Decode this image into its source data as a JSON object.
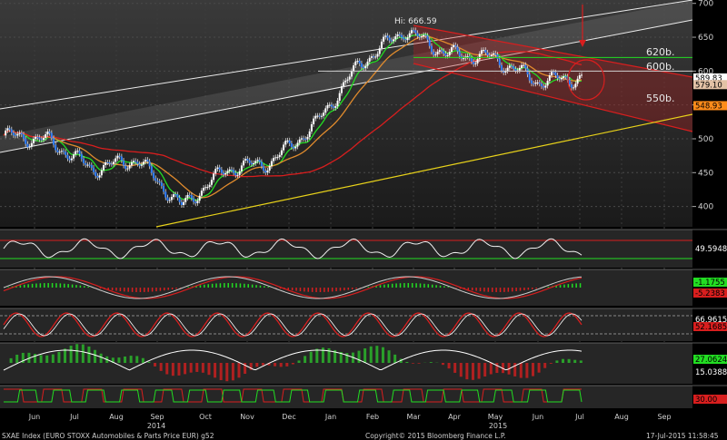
{
  "chart_data": {
    "type": "line",
    "title": "",
    "footer": {
      "left": "SXAE Index (EURO STOXX Automobiles & Parts Price EUR) g52",
      "center": "Copyright© 2015 Bloomberg Finance L.P.",
      "right": "17-Jul-2015 11:58:45"
    },
    "x_labels": [
      "Jun",
      "Jul",
      "Aug",
      "Sep",
      "Oct",
      "Nov",
      "Dec",
      "Jan",
      "Feb",
      "Mar",
      "Apr",
      "May",
      "Jun",
      "Jul",
      "Aug",
      "Sep"
    ],
    "year_labels": [
      "2014",
      "2015"
    ],
    "ylim": [
      370,
      705
    ],
    "y_ticks": [
      400,
      450,
      500,
      550,
      600,
      650,
      700
    ],
    "annotations": {
      "high": "Hi: 666.59",
      "level_620": "620b.",
      "level_600": "600b.",
      "level_550": "550b."
    },
    "price_tags": [
      {
        "value": "589.83",
        "color": "#ffffff",
        "text_color": "#000000",
        "y": 589.83
      },
      {
        "value": "579.10",
        "color": "#e3c2a6",
        "text_color": "#000000",
        "y": 580
      },
      {
        "value": "548.93",
        "color": "#ff8c1a",
        "text_color": "#000000",
        "y": 548.93
      }
    ],
    "close_monthly": [
      {
        "m": "Jun",
        "v": 505
      },
      {
        "m": "Jul",
        "v": 498
      },
      {
        "m": "Aug",
        "v": 455
      },
      {
        "m": "Sep",
        "v": 470
      },
      {
        "m": "Oct",
        "v": 400
      },
      {
        "m": "Nov",
        "v": 455
      },
      {
        "m": "Dec",
        "v": 465
      },
      {
        "m": "Jan",
        "v": 520
      },
      {
        "m": "Feb",
        "v": 610
      },
      {
        "m": "Mar",
        "v": 660
      },
      {
        "m": "Apr",
        "v": 625
      },
      {
        "m": "May",
        "v": 620
      },
      {
        "m": "Jun",
        "v": 585
      },
      {
        "m": "Jul",
        "v": 590
      }
    ],
    "indicators": [
      {
        "name": "rsi",
        "value_label": "49.5948"
      },
      {
        "name": "macd",
        "value_labels": [
          "-1.1755",
          "-5.2383"
        ]
      },
      {
        "name": "stochastic",
        "value_labels": [
          "66.9615",
          "52.1685"
        ]
      },
      {
        "name": "dmi",
        "value_labels": [
          "27.0624",
          "15.0388"
        ]
      },
      {
        "name": "signal",
        "value_labels": [
          "30.00"
        ]
      }
    ],
    "colors": {
      "price": "#ffffff",
      "up": "#22dd22",
      "down": "#2f7fff",
      "ma_fast": "#22dd22",
      "ma_mid": "#e08b2d",
      "ma_slow": "#d81e1e",
      "channel": "#ffffff",
      "trend_down": "#d81e1e",
      "support": "#e8d21a"
    }
  }
}
